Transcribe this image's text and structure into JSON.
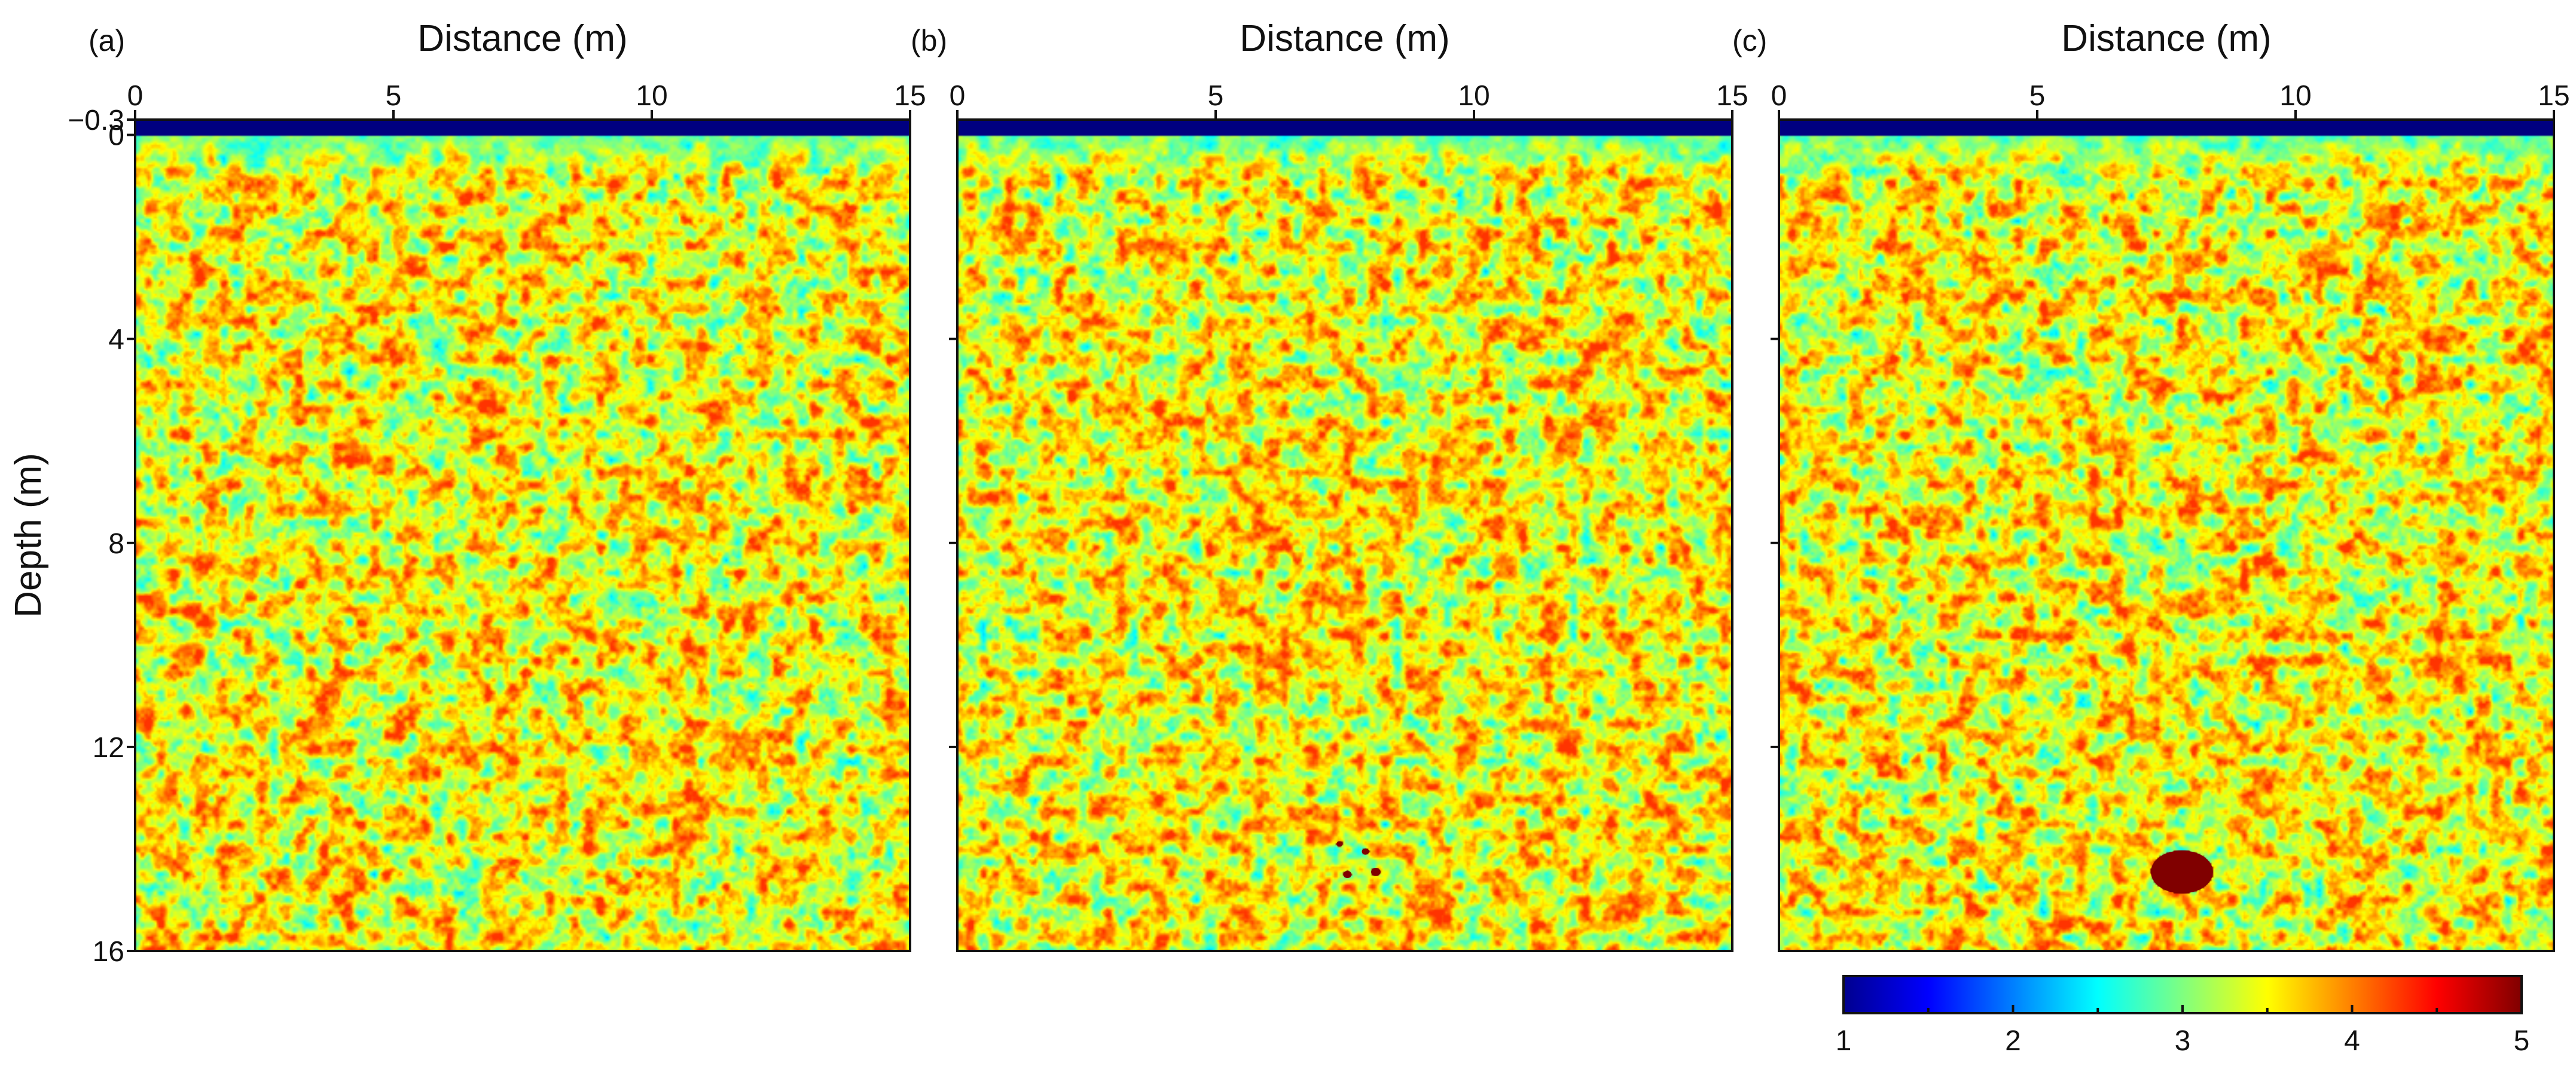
{
  "chart_data": [
    {
      "type": "heatmap",
      "panel_label": "(a)",
      "xlabel": "Distance (m)",
      "ylabel": "Depth (m)",
      "xlim": [
        0,
        15
      ],
      "ylim": [
        -0.3,
        16
      ],
      "xticks": [
        0,
        5,
        10,
        15
      ],
      "yticks": [
        -0.3,
        0,
        4,
        8,
        12,
        16
      ],
      "xtick_labels": [
        "0",
        "5",
        "10",
        "15"
      ],
      "ytick_labels": [
        "−0.3",
        "0",
        "4",
        "8",
        "12",
        "16"
      ],
      "field_mean": 3.5,
      "field_range": [
        2.5,
        4.3
      ],
      "near_surface_layer": {
        "depth_range": [
          -0.3,
          0
        ],
        "value": 1.0
      },
      "transition_depth": [
        0,
        0.8
      ],
      "inclusions": []
    },
    {
      "type": "heatmap",
      "panel_label": "(b)",
      "xlabel": "Distance (m)",
      "xlim": [
        0,
        15
      ],
      "ylim": [
        -0.3,
        16
      ],
      "xticks": [
        0,
        5,
        10,
        15
      ],
      "xtick_labels": [
        "0",
        "5",
        "10",
        "15"
      ],
      "field_mean": 3.5,
      "field_range": [
        2.5,
        4.3
      ],
      "near_surface_layer": {
        "depth_range": [
          -0.3,
          0
        ],
        "value": 1.0
      },
      "transition_depth": [
        0,
        0.8
      ],
      "inclusions": [
        {
          "x": 7.4,
          "y": 13.9,
          "rx": 0.06,
          "ry": 0.05,
          "value": 5.0
        },
        {
          "x": 7.9,
          "y": 14.05,
          "rx": 0.07,
          "ry": 0.06,
          "value": 5.0
        },
        {
          "x": 7.55,
          "y": 14.5,
          "rx": 0.08,
          "ry": 0.07,
          "value": 5.0
        },
        {
          "x": 8.1,
          "y": 14.45,
          "rx": 0.09,
          "ry": 0.08,
          "value": 5.0
        }
      ]
    },
    {
      "type": "heatmap",
      "panel_label": "(c)",
      "xlabel": "Distance (m)",
      "xlim": [
        0,
        15
      ],
      "ylim": [
        -0.3,
        16
      ],
      "xticks": [
        0,
        5,
        10,
        15
      ],
      "xtick_labels": [
        "0",
        "5",
        "10",
        "15"
      ],
      "field_mean": 3.5,
      "field_range": [
        2.5,
        4.3
      ],
      "near_surface_layer": {
        "depth_range": [
          -0.3,
          0
        ],
        "value": 1.0
      },
      "transition_depth": [
        0,
        0.8
      ],
      "inclusions": [
        {
          "x": 7.8,
          "y": 14.45,
          "rx": 0.6,
          "ry": 0.42,
          "value": 5.0
        }
      ]
    }
  ],
  "colorbar": {
    "colormap": "jet",
    "range": [
      1,
      5
    ],
    "ticks": [
      1,
      2,
      3,
      4,
      5
    ],
    "tick_labels": [
      "1",
      "2",
      "3",
      "4",
      "5"
    ]
  }
}
